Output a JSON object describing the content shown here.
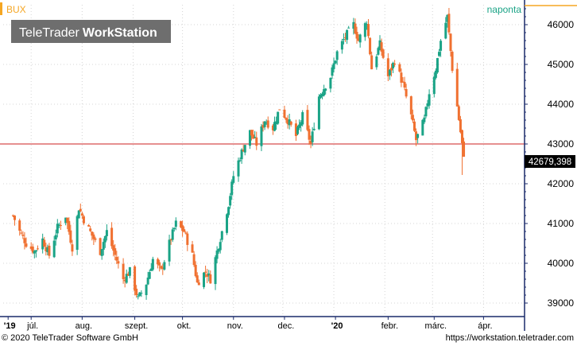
{
  "header": {
    "symbol": "BUX",
    "interval": "naponta",
    "brand_light": "TeleTrader",
    "brand_bold": "WorkStation"
  },
  "footer": {
    "copyright": "© 2020 TeleTrader Software GmbH",
    "url": "https://workstation.teletrader.com"
  },
  "colors": {
    "up": "#1aa386",
    "down": "#f07030",
    "reference_line": "#cc2222",
    "axis": "#1a2a6a",
    "accent": "#f5a623",
    "symbol_text": "#f5a623",
    "interval_text": "#1aa386"
  },
  "chart_data": {
    "type": "candlestick",
    "x_tick_labels": [
      "'19",
      "júl.",
      "aug.",
      "szept.",
      "okt.",
      "nov.",
      "dec.",
      "'20",
      "febr.",
      "márc.",
      "ápr."
    ],
    "y_ticks": [
      39000,
      40000,
      41000,
      42000,
      43000,
      44000,
      45000,
      46000
    ],
    "ylim": [
      38700,
      46500
    ],
    "grid": true,
    "last_value": 42679.398,
    "last_value_label": "42679,398",
    "reference_line": 43000,
    "anchors": [
      [
        "2019-06-20",
        41200
      ],
      [
        "2019-06-24",
        40800
      ],
      [
        "2019-06-28",
        40500
      ],
      [
        "2019-07-03",
        40300
      ],
      [
        "2019-07-08",
        40600
      ],
      [
        "2019-07-12",
        40200
      ],
      [
        "2019-07-17",
        40900
      ],
      [
        "2019-07-22",
        41200
      ],
      [
        "2019-07-26",
        40400
      ],
      [
        "2019-07-30",
        41400
      ],
      [
        "2019-08-02",
        41100
      ],
      [
        "2019-08-07",
        40700
      ],
      [
        "2019-08-12",
        40300
      ],
      [
        "2019-08-16",
        40800
      ],
      [
        "2019-08-21",
        40200
      ],
      [
        "2019-08-26",
        39600
      ],
      [
        "2019-08-30",
        39800
      ],
      [
        "2019-09-04",
        39100
      ],
      [
        "2019-09-09",
        39500
      ],
      [
        "2019-09-13",
        40100
      ],
      [
        "2019-09-18",
        39800
      ],
      [
        "2019-09-23",
        40500
      ],
      [
        "2019-09-27",
        41000
      ],
      [
        "2019-10-02",
        40800
      ],
      [
        "2019-10-07",
        40200
      ],
      [
        "2019-10-10",
        39500
      ],
      [
        "2019-10-15",
        39800
      ],
      [
        "2019-10-18",
        39600
      ],
      [
        "2019-10-22",
        40300
      ],
      [
        "2019-10-25",
        40800
      ],
      [
        "2019-10-29",
        41500
      ],
      [
        "2019-11-01",
        42200
      ],
      [
        "2019-11-06",
        42800
      ],
      [
        "2019-11-11",
        43300
      ],
      [
        "2019-11-15",
        43000
      ],
      [
        "2019-11-20",
        43600
      ],
      [
        "2019-11-25",
        43400
      ],
      [
        "2019-11-29",
        43900
      ],
      [
        "2019-12-04",
        43600
      ],
      [
        "2019-12-09",
        43200
      ],
      [
        "2019-12-13",
        43700
      ],
      [
        "2019-12-18",
        43000
      ],
      [
        "2019-12-23",
        44200
      ],
      [
        "2019-12-30",
        44700
      ],
      [
        "2020-01-03",
        45300
      ],
      [
        "2020-01-08",
        45700
      ],
      [
        "2020-01-13",
        46000
      ],
      [
        "2020-01-16",
        45600
      ],
      [
        "2020-01-21",
        46100
      ],
      [
        "2020-01-24",
        44900
      ],
      [
        "2020-01-29",
        45500
      ],
      [
        "2020-02-03",
        44700
      ],
      [
        "2020-02-07",
        45100
      ],
      [
        "2020-02-12",
        44500
      ],
      [
        "2020-02-17",
        43700
      ],
      [
        "2020-02-20",
        43100
      ],
      [
        "2020-02-25",
        43600
      ],
      [
        "2020-02-28",
        44300
      ],
      [
        "2020-03-03",
        44900
      ],
      [
        "2020-03-06",
        45600
      ],
      [
        "2020-03-10",
        46200
      ],
      [
        "2020-03-13",
        44900
      ],
      [
        "2020-03-18",
        43300
      ],
      [
        "2020-03-20",
        42679.398
      ]
    ]
  }
}
